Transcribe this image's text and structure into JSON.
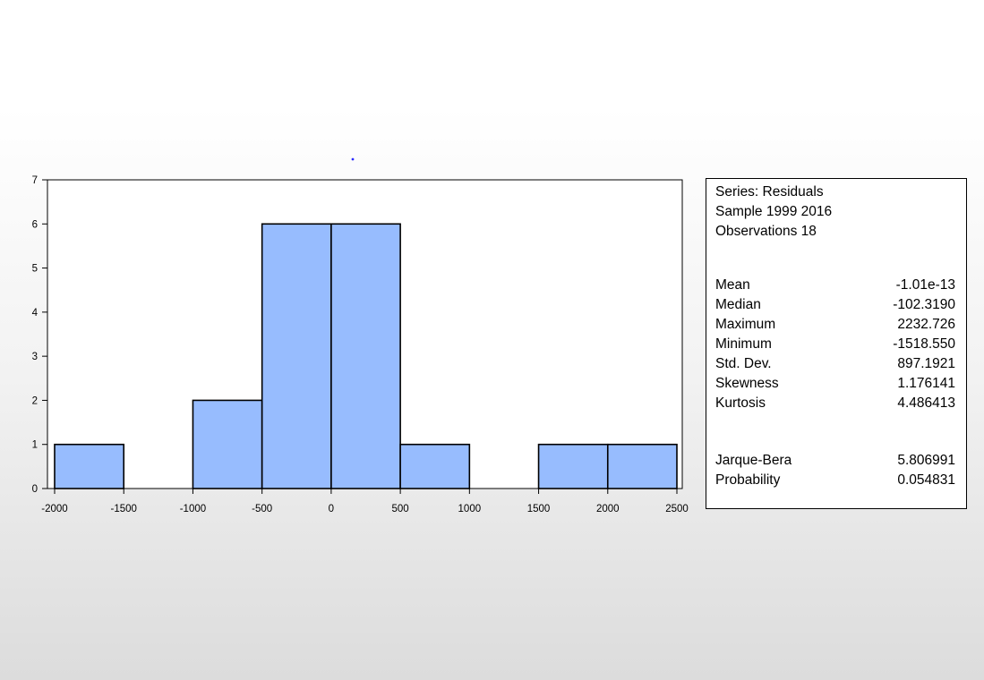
{
  "chart_data": {
    "type": "bar",
    "bins": [
      {
        "from": -2000,
        "to": -1500,
        "count": 1
      },
      {
        "from": -1500,
        "to": -1000,
        "count": 0
      },
      {
        "from": -1000,
        "to": -500,
        "count": 2
      },
      {
        "from": -500,
        "to": 0,
        "count": 6
      },
      {
        "from": 0,
        "to": 500,
        "count": 6
      },
      {
        "from": 500,
        "to": 1000,
        "count": 1
      },
      {
        "from": 1000,
        "to": 1500,
        "count": 0
      },
      {
        "from": 1500,
        "to": 2000,
        "count": 1
      },
      {
        "from": 2000,
        "to": 2500,
        "count": 1
      }
    ],
    "x_ticks": [
      -2000,
      -1500,
      -1000,
      -500,
      0,
      500,
      1000,
      1500,
      2000,
      2500
    ],
    "y_ticks": [
      0,
      1,
      2,
      3,
      4,
      5,
      6,
      7
    ],
    "xlim": [
      -2000,
      2500
    ],
    "ylim": [
      0,
      7
    ],
    "title": "",
    "xlabel": "",
    "ylabel": "",
    "grid": false,
    "bar_color": "#97bcfe"
  },
  "stats": {
    "header": [
      "Series: Residuals",
      "Sample 1999 2016",
      "Observations 18"
    ],
    "rows": [
      {
        "label": "Mean",
        "value": "-1.01e-13"
      },
      {
        "label": "Median",
        "value": "-102.3190"
      },
      {
        "label": "Maximum",
        "value": "2232.726"
      },
      {
        "label": "Minimum",
        "value": "-1518.550"
      },
      {
        "label": "Std. Dev.",
        "value": "897.1921"
      },
      {
        "label": "Skewness",
        "value": "1.176141"
      },
      {
        "label": "Kurtosis",
        "value": "4.486413"
      }
    ],
    "tests": [
      {
        "label": "Jarque-Bera",
        "value": "5.806991"
      },
      {
        "label": "Probability",
        "value": "0.054831"
      }
    ]
  }
}
